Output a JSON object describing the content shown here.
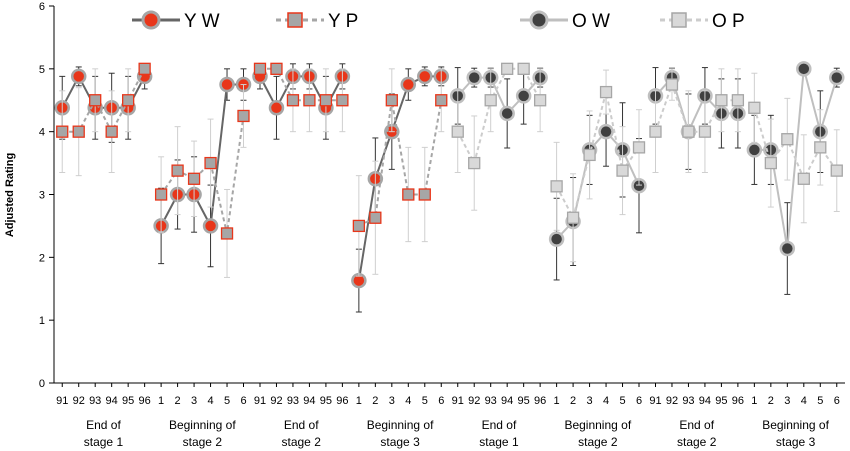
{
  "chart_data": {
    "type": "line",
    "ylabel": "Adjusted Rating",
    "ylim": [
      0,
      6
    ],
    "yticks": [
      "0",
      "1",
      "2",
      "3",
      "4",
      "5",
      "6"
    ],
    "legend": [
      {
        "key": "YW",
        "label": "Y W",
        "color": "#666666",
        "marker": "circle",
        "fill": "#e8361a",
        "ring": "#a6a6a6",
        "dashed": false
      },
      {
        "key": "YP",
        "label": "Y P",
        "color": "#a6a6a6",
        "marker": "square",
        "fill": "#a6a6a6",
        "ring": "#e8361a",
        "dashed": true
      },
      {
        "key": "OW",
        "label": "O W",
        "color": "#bfbfbf",
        "marker": "circle",
        "fill": "#404040",
        "ring": "#bfbfbf",
        "dashed": false
      },
      {
        "key": "OP",
        "label": "O P",
        "color": "#cccccc",
        "marker": "square",
        "fill": "#d9d9d9",
        "ring": "#a6a6a6",
        "dashed": true
      }
    ],
    "groups": [
      {
        "label1": "End of",
        "label2": "stage 1",
        "ticks": [
          "91",
          "92",
          "93",
          "94",
          "95",
          "96"
        ],
        "series": [
          {
            "key": "YW",
            "values": [
              4.38,
              4.88,
              4.38,
              4.38,
              4.38,
              4.88
            ],
            "errors": [
              0.5,
              0.15,
              0.5,
              0.55,
              0.5,
              0.2
            ]
          },
          {
            "key": "YP",
            "values": [
              4.0,
              4.0,
              4.5,
              4.0,
              4.5,
              5.0
            ],
            "errors": [
              0.65,
              0.7,
              0.5,
              0.65,
              0.5,
              0.05
            ]
          }
        ]
      },
      {
        "label1": "Beginning of",
        "label2": "stage 2",
        "ticks": [
          "1",
          "2",
          "3",
          "4",
          "5",
          "6"
        ],
        "series": [
          {
            "key": "YW",
            "values": [
              2.5,
              3.0,
              3.0,
              2.5,
              4.75,
              4.75
            ],
            "errors": [
              0.6,
              0.55,
              0.6,
              0.65,
              0.25,
              0.25
            ]
          },
          {
            "key": "YP",
            "values": [
              3.0,
              3.38,
              3.25,
              3.5,
              2.38,
              4.25
            ],
            "errors": [
              0.6,
              0.7,
              0.6,
              0.7,
              0.7,
              0.5
            ]
          }
        ]
      },
      {
        "label1": "End of",
        "label2": "stage 2",
        "ticks": [
          "91",
          "92",
          "93",
          "94",
          "95",
          "96"
        ],
        "series": [
          {
            "key": "YW",
            "values": [
              4.88,
              4.38,
              4.88,
              4.88,
              4.38,
              4.88
            ],
            "errors": [
              0.2,
              0.5,
              0.2,
              0.2,
              0.5,
              0.2
            ]
          },
          {
            "key": "YP",
            "values": [
              5.0,
              5.0,
              4.5,
              4.5,
              4.5,
              4.5
            ],
            "errors": [
              0.05,
              0.05,
              0.5,
              0.5,
              0.5,
              0.5
            ]
          }
        ]
      },
      {
        "label1": "Beginning of",
        "label2": "stage 3",
        "ticks": [
          "1",
          "2",
          "3",
          "4",
          "5",
          "6"
        ],
        "series": [
          {
            "key": "YW",
            "values": [
              1.63,
              3.25,
              4.0,
              4.75,
              4.88,
              4.88
            ],
            "errors": [
              0.5,
              0.65,
              0.6,
              0.25,
              0.15,
              0.15
            ]
          },
          {
            "key": "YP",
            "values": [
              2.5,
              2.63,
              4.5,
              3.0,
              3.0,
              4.5
            ],
            "errors": [
              0.8,
              0.9,
              0.5,
              0.75,
              0.75,
              0.5
            ]
          }
        ]
      },
      {
        "label1": "End of",
        "label2": "stage 1",
        "ticks": [
          "91",
          "92",
          "93",
          "94",
          "95",
          "96"
        ],
        "series": [
          {
            "key": "OW",
            "values": [
              4.57,
              4.86,
              4.86,
              4.29,
              4.57,
              4.86
            ],
            "errors": [
              0.45,
              0.15,
              0.15,
              0.55,
              0.45,
              0.15
            ]
          },
          {
            "key": "OP",
            "values": [
              4.0,
              3.5,
              4.5,
              5.0,
              5.0,
              4.5
            ],
            "errors": [
              0.65,
              0.75,
              0.5,
              0.05,
              0.05,
              0.5
            ]
          }
        ]
      },
      {
        "label1": "Beginning of",
        "label2": "stage 2",
        "ticks": [
          "1",
          "2",
          "3",
          "4",
          "5",
          "6"
        ],
        "series": [
          {
            "key": "OW",
            "values": [
              2.29,
              2.57,
              3.71,
              4.0,
              3.71,
              3.14
            ],
            "errors": [
              0.65,
              0.7,
              0.55,
              0.55,
              0.75,
              0.75
            ]
          },
          {
            "key": "OP",
            "values": [
              3.13,
              2.63,
              3.63,
              4.63,
              3.38,
              3.75
            ],
            "errors": [
              0.7,
              0.7,
              0.7,
              0.35,
              0.7,
              0.6
            ]
          }
        ]
      },
      {
        "label1": "End of",
        "label2": "stage 2",
        "ticks": [
          "91",
          "92",
          "93",
          "94",
          "95",
          "96"
        ],
        "series": [
          {
            "key": "OW",
            "values": [
              4.57,
              4.86,
              4.0,
              4.57,
              4.29,
              4.29
            ],
            "errors": [
              0.45,
              0.15,
              0.6,
              0.45,
              0.55,
              0.55
            ]
          },
          {
            "key": "OP",
            "values": [
              4.0,
              4.75,
              4.0,
              4.0,
              4.5,
              4.5
            ],
            "errors": [
              0.65,
              0.25,
              0.65,
              0.65,
              0.5,
              0.5
            ]
          }
        ]
      },
      {
        "label1": "Beginning of",
        "label2": "stage 3",
        "ticks": [
          "1",
          "2",
          "3",
          "4",
          "5",
          "6"
        ],
        "series": [
          {
            "key": "OW",
            "values": [
              3.71,
              3.71,
              2.14,
              5.0,
              4.0,
              4.86
            ],
            "errors": [
              0.55,
              0.55,
              0.73,
              0.05,
              0.65,
              0.15
            ]
          },
          {
            "key": "OP",
            "values": [
              4.38,
              3.5,
              3.88,
              3.25,
              3.75,
              3.38
            ],
            "errors": [
              0.55,
              0.7,
              0.65,
              0.7,
              0.6,
              0.65
            ]
          }
        ]
      }
    ]
  }
}
